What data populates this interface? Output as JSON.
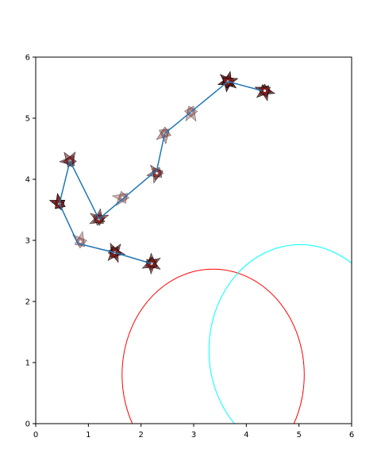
{
  "chart_data": {
    "type": "scatter",
    "title": "",
    "xlabel": "",
    "ylabel": "",
    "xlim": [
      0,
      6
    ],
    "ylim": [
      0,
      6
    ],
    "grid": false,
    "x_ticks": [
      "0",
      "1",
      "2",
      "3",
      "4",
      "5",
      "6"
    ],
    "y_ticks": [
      "0",
      "1",
      "2",
      "3",
      "4",
      "5",
      "6"
    ],
    "path": {
      "color": "#1f77b4",
      "x": [
        4.3,
        3.65,
        2.45,
        2.3,
        1.2,
        0.65,
        0.45,
        0.8,
        1.5,
        2.2
      ],
      "y": [
        5.45,
        5.6,
        4.75,
        4.15,
        3.35,
        4.3,
        3.6,
        2.95,
        2.8,
        2.62
      ]
    },
    "markers": {
      "color": "#7a1f1f",
      "points": [
        {
          "x": 4.35,
          "y": 5.45,
          "count": 4,
          "opacity": 0.75
        },
        {
          "x": 3.65,
          "y": 5.6,
          "count": 6,
          "opacity": 0.85
        },
        {
          "x": 2.95,
          "y": 5.1,
          "count": 2,
          "opacity": 0.35
        },
        {
          "x": 2.45,
          "y": 4.75,
          "count": 2,
          "opacity": 0.4
        },
        {
          "x": 2.3,
          "y": 4.1,
          "count": 3,
          "opacity": 0.5
        },
        {
          "x": 1.65,
          "y": 3.7,
          "count": 2,
          "opacity": 0.35
        },
        {
          "x": 1.2,
          "y": 3.35,
          "count": 4,
          "opacity": 0.55
        },
        {
          "x": 0.65,
          "y": 4.3,
          "count": 3,
          "opacity": 0.6
        },
        {
          "x": 0.45,
          "y": 3.6,
          "count": 2,
          "opacity": 0.95
        },
        {
          "x": 0.85,
          "y": 2.98,
          "count": 2,
          "opacity": 0.35
        },
        {
          "x": 1.5,
          "y": 2.8,
          "count": 5,
          "opacity": 0.7
        },
        {
          "x": 2.2,
          "y": 2.62,
          "count": 5,
          "opacity": 0.65
        }
      ]
    },
    "ellipses": [
      {
        "color": "#ff0000",
        "cx": 3.37,
        "cy": 0.8,
        "rx": 1.73,
        "ry": 1.73
      },
      {
        "color": "#00ffff",
        "cx": 5.02,
        "cy": 1.2,
        "rx": 1.73,
        "ry": 1.73
      }
    ]
  }
}
